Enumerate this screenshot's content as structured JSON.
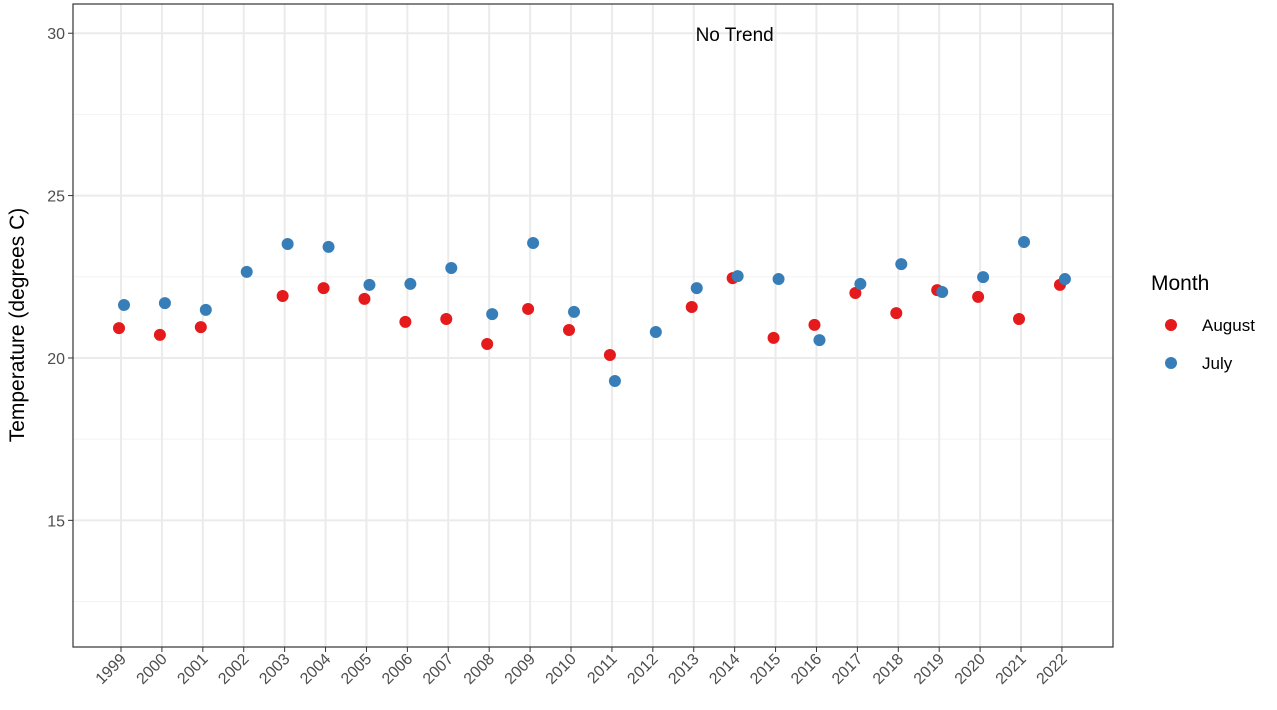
{
  "chart_data": {
    "type": "scatter",
    "y_label": "Temperature (degrees C)",
    "annotation": {
      "text": "No Trend",
      "x": "2014",
      "y": 30
    },
    "categories": [
      "1999",
      "2000",
      "2001",
      "2002",
      "2003",
      "2004",
      "2005",
      "2006",
      "2007",
      "2008",
      "2009",
      "2010",
      "2011",
      "2012",
      "2013",
      "2014",
      "2015",
      "2016",
      "2017",
      "2018",
      "2019",
      "2020",
      "2021",
      "2022"
    ],
    "series": [
      {
        "name": "August",
        "color": "#e41a1c",
        "values": [
          20.92,
          20.71,
          20.95,
          null,
          21.91,
          22.15,
          21.82,
          21.11,
          21.2,
          20.43,
          21.51,
          20.86,
          20.09,
          null,
          21.57,
          22.46,
          20.62,
          21.02,
          22.0,
          21.38,
          22.09,
          21.88,
          21.2,
          22.25
        ]
      },
      {
        "name": "July",
        "color": "#377eb8",
        "values": [
          21.63,
          21.69,
          21.48,
          22.65,
          23.51,
          23.42,
          22.25,
          22.28,
          22.77,
          21.35,
          23.54,
          21.42,
          19.29,
          20.8,
          22.15,
          22.52,
          22.43,
          20.55,
          22.28,
          22.89,
          22.03,
          22.49,
          23.57,
          22.43
        ]
      }
    ],
    "legend_title": "Month",
    "legend_position": "right",
    "ylim": [
      11.1,
      30.9
    ],
    "yticks": [
      15,
      20,
      25,
      30
    ],
    "minor_yticks": [
      12.5,
      17.5,
      22.5,
      27.5
    ],
    "grid": true
  }
}
